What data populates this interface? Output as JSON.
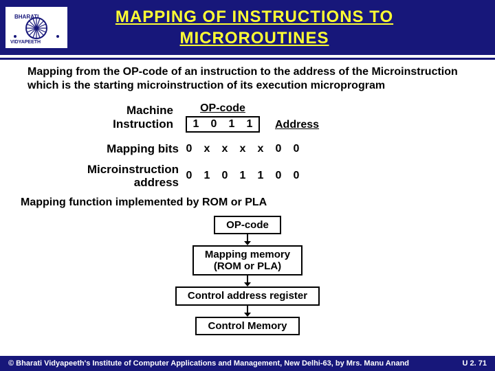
{
  "colors": {
    "navy": "#17177a",
    "title_yellow": "#ffff33",
    "white": "#ffffff",
    "black": "#000000"
  },
  "title": "MAPPING  OF  INSTRUCTIONS  TO MICROROUTINES",
  "logo_top": "BHARATI",
  "logo_bottom": "VIDYAPEETH",
  "intro": "Mapping from the OP-code of an instruction to the address of the Microinstruction which is the starting microinstruction of its execution microprogram",
  "labels": {
    "machine_instruction": "Machine\nInstruction",
    "mapping_bits": "Mapping bits",
    "micro_addr": "Microinstruction\naddress",
    "opcode": "OP-code",
    "address": "Address"
  },
  "opcode_bits": [
    "1",
    "0",
    "1",
    "1"
  ],
  "mapping_bits": [
    "0",
    "x",
    "x",
    "x",
    "x",
    "0",
    "0"
  ],
  "micro_addr_bits": [
    "0",
    "1",
    "0",
    "1",
    "1",
    "0",
    "0"
  ],
  "summary": "Mapping function implemented by ROM or PLA",
  "flow": {
    "box1": "OP-code",
    "box2": "Mapping memory\n(ROM or PLA)",
    "box3": "Control address register",
    "box4": "Control Memory"
  },
  "footer_left": "© Bharati Vidyapeeth's Institute of Computer Applications and Management, New Delhi-63, by Mrs. Manu Anand",
  "footer_right": "U 2. 71"
}
